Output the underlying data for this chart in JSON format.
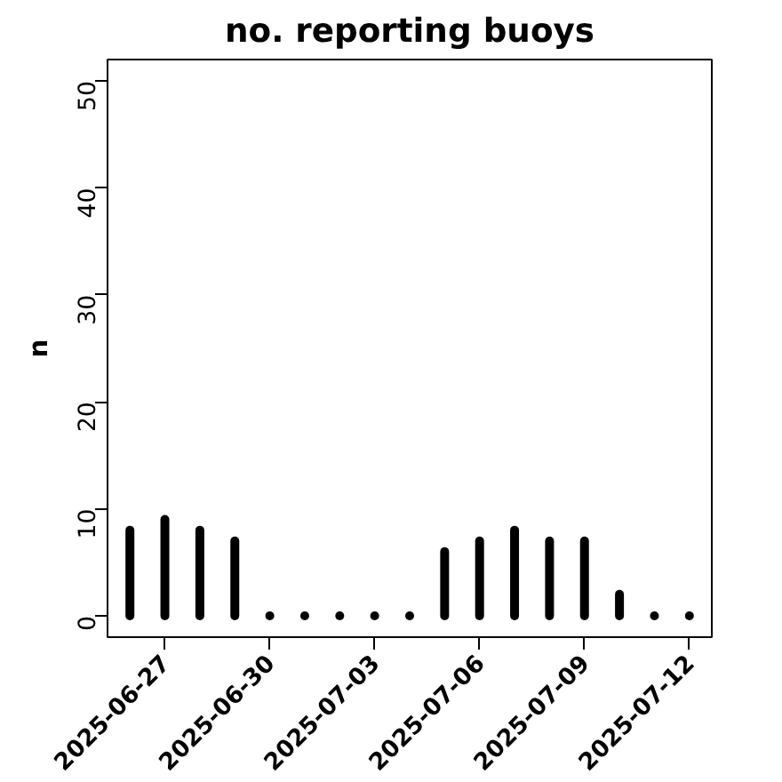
{
  "chart_data": {
    "type": "bar",
    "title": "no. reporting buoys",
    "ylabel": "n",
    "x": [
      "2025-06-26",
      "2025-06-27",
      "2025-06-28",
      "2025-06-29",
      "2025-06-30",
      "2025-07-01",
      "2025-07-02",
      "2025-07-03",
      "2025-07-04",
      "2025-07-05",
      "2025-07-06",
      "2025-07-07",
      "2025-07-08",
      "2025-07-09",
      "2025-07-10",
      "2025-07-11",
      "2025-07-12"
    ],
    "values": [
      8,
      9,
      8,
      7,
      0,
      0,
      0,
      0,
      0,
      6,
      7,
      8,
      7,
      7,
      2,
      0,
      0
    ],
    "color": "#000000",
    "xlim": [
      "2025-06-25T08:38",
      "2025-07-12T15:22"
    ],
    "xticks": [
      "2025-06-27",
      "2025-06-30",
      "2025-07-03",
      "2025-07-06",
      "2025-07-09",
      "2025-07-12"
    ],
    "ylim": [
      -2,
      52
    ],
    "yticks": [
      0,
      10,
      20,
      30,
      40,
      50
    ],
    "grid": false
  }
}
